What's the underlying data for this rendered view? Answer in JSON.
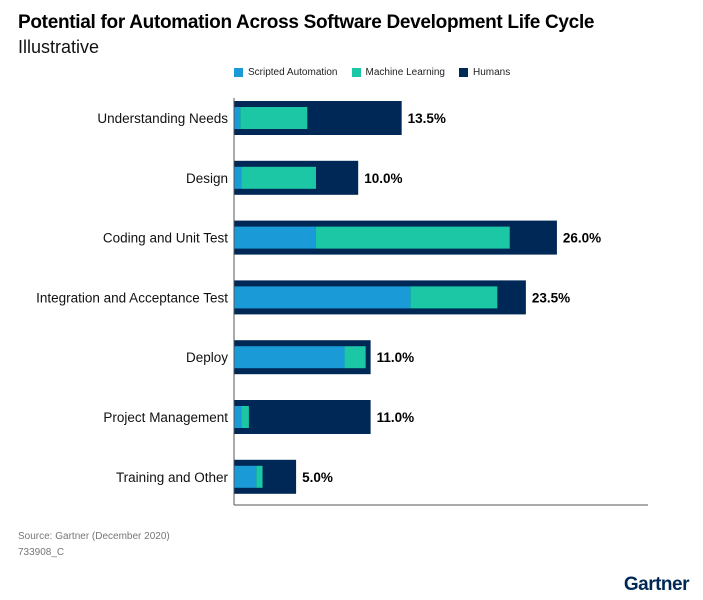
{
  "title": "Potential for Automation Across Software Development Life Cycle",
  "subtitle": "Illustrative",
  "source": "Source: Gartner (December 2020)",
  "code": "733908_C",
  "logo": "Gartner",
  "colors": {
    "scripted": "#1a9ad6",
    "ml": "#1cc7a6",
    "humans": "#002856"
  },
  "chart_data": {
    "type": "bar",
    "orientation": "horizontal",
    "stacked": "overlay",
    "categories": [
      "Understanding Needs",
      "Design",
      "Coding and Unit Test",
      "Integration and Acceptance Test",
      "Deploy",
      "Project Management",
      "Training and Other"
    ],
    "series": [
      {
        "name": "Scripted Automation",
        "values": [
          0.5,
          0.6,
          6.6,
          14.2,
          8.9,
          0.6,
          1.8
        ]
      },
      {
        "name": "Machine Learning",
        "values": [
          5.4,
          6.0,
          15.6,
          7.0,
          1.7,
          0.6,
          0.5
        ]
      },
      {
        "name": "Humans",
        "values": [
          7.6,
          3.4,
          3.8,
          2.3,
          0.4,
          9.8,
          2.7
        ]
      }
    ],
    "totals": [
      13.5,
      10.0,
      26.0,
      23.5,
      11.0,
      11.0,
      5.0
    ],
    "total_labels": [
      "13.5%",
      "10.0%",
      "26.0%",
      "23.5%",
      "11.0%",
      "11.0%",
      "5.0%"
    ],
    "xlim": [
      0,
      33.4
    ],
    "grid": false,
    "legend": "top"
  }
}
